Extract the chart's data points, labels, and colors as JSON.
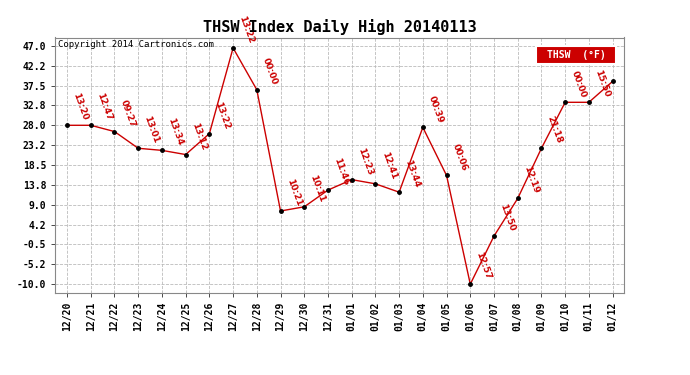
{
  "title": "THSW Index Daily High 20140113",
  "copyright": "Copyright 2014 Cartronics.com",
  "legend_label": "THSW  (°F)",
  "x_labels": [
    "12/20",
    "12/21",
    "12/22",
    "12/23",
    "12/24",
    "12/25",
    "12/26",
    "12/27",
    "12/28",
    "12/29",
    "12/30",
    "12/31",
    "01/01",
    "01/02",
    "01/03",
    "01/04",
    "01/05",
    "01/06",
    "01/07",
    "01/08",
    "01/09",
    "01/10",
    "01/11",
    "01/12"
  ],
  "y_values": [
    28.0,
    28.0,
    26.5,
    22.5,
    22.0,
    21.0,
    26.0,
    46.5,
    36.5,
    7.5,
    8.5,
    12.5,
    15.0,
    14.0,
    12.0,
    27.5,
    16.0,
    -10.0,
    1.5,
    10.5,
    22.5,
    33.5,
    33.5,
    38.5
  ],
  "time_labels": [
    "13:20",
    "12:47",
    "09:27",
    "13:01",
    "13:34",
    "13:12",
    "13:22",
    "13:22",
    "00:00",
    "10:21",
    "10:11",
    "11:46",
    "12:23",
    "12:41",
    "13:44",
    "00:39",
    "00:06",
    "12:57",
    "13:50",
    "12:19",
    "21:18",
    "00:00",
    "15:50",
    ""
  ],
  "ylim": [
    -12.0,
    49.0
  ],
  "yticks": [
    -10.0,
    -5.2,
    -0.5,
    4.2,
    9.0,
    13.8,
    18.5,
    23.2,
    28.0,
    32.8,
    37.5,
    42.2,
    47.0
  ],
  "line_color": "#cc0000",
  "dot_color": "#000000",
  "bg_color": "#ffffff",
  "grid_color": "#bbbbbb",
  "title_fontsize": 11,
  "label_fontsize": 7
}
